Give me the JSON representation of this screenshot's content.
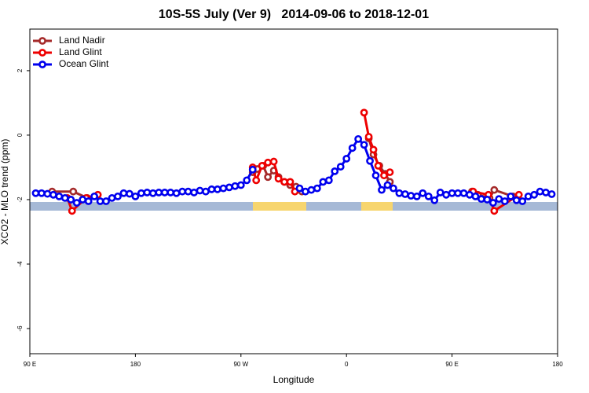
{
  "chart_data": {
    "type": "line",
    "title": "10S-5S July (Ver 9)   2014-09-06 to 2018-12-01",
    "x_label": "Longitude",
    "y_label": "XCO2 - MLO trend (ppm)",
    "xlim": [
      90,
      540
    ],
    "xticks": [
      {
        "value": 90,
        "label": "90 E"
      },
      {
        "value": 180,
        "label": "180"
      },
      {
        "value": 270,
        "label": "90 W"
      },
      {
        "value": 360,
        "label": "0"
      },
      {
        "value": 450,
        "label": "90 E"
      },
      {
        "value": 540,
        "label": "180"
      }
    ],
    "ylim": [
      -6.78,
      3.29
    ],
    "yticks": [
      -6,
      -4,
      -2,
      0,
      2
    ],
    "legend": "top-left",
    "series": [
      {
        "name": "Land Nadir",
        "color": "#a52a2a",
        "x": [
          109,
          127,
          139,
          200,
          280,
          284,
          289,
          293,
          298,
          302,
          307,
          312,
          317,
          322,
          350,
          379,
          383,
          388,
          393,
          397,
          430,
          467,
          472,
          482,
          486,
          502
        ],
        "values": [
          -1.75,
          -1.75,
          -1.95,
          null,
          -1.15,
          -1.05,
          -0.95,
          -1.3,
          -1.1,
          -1.3,
          -1.45,
          -1.55,
          -1.6,
          -1.75,
          null,
          -0.1,
          -0.6,
          -0.95,
          -1.2,
          -1.45,
          null,
          -1.75,
          -1.85,
          -1.95,
          -1.7,
          -1.9
        ]
      },
      {
        "name": "Land Glint",
        "color": "#ee0000",
        "x": [
          122,
          126,
          138,
          148,
          200,
          280,
          283,
          288,
          293,
          298,
          302,
          307,
          312,
          316,
          350,
          375,
          379,
          383,
          387,
          392,
          397,
          430,
          468,
          481,
          486,
          507
        ],
        "values": [
          -1.95,
          -2.35,
          -1.95,
          -1.85,
          null,
          -1.0,
          -1.4,
          -0.95,
          -0.85,
          -0.82,
          -1.35,
          -1.45,
          -1.45,
          -1.75,
          null,
          0.7,
          -0.05,
          -0.45,
          -0.95,
          -1.25,
          -1.15,
          null,
          -1.75,
          -1.85,
          -2.35,
          -1.85
        ]
      },
      {
        "name": "Ocean Glint",
        "color": "#0000ee",
        "x": [
          95,
          100,
          105,
          110,
          115,
          120,
          125,
          130,
          135,
          140,
          145,
          150,
          155,
          160,
          165,
          170,
          175,
          180,
          185,
          190,
          195,
          200,
          205,
          210,
          215,
          220,
          225,
          230,
          235,
          240,
          245,
          250,
          255,
          260,
          265,
          270,
          275,
          280,
          300,
          320,
          325,
          330,
          335,
          340,
          345,
          350,
          355,
          360,
          365,
          370,
          375,
          380,
          385,
          390,
          395,
          400,
          405,
          410,
          415,
          420,
          425,
          430,
          435,
          440,
          445,
          450,
          455,
          460,
          465,
          470,
          475,
          480,
          485,
          490,
          495,
          500,
          505,
          510,
          515,
          520,
          525,
          530,
          535
        ],
        "values": [
          -1.8,
          -1.8,
          -1.82,
          -1.85,
          -1.9,
          -1.95,
          -2.0,
          -2.1,
          -2.0,
          -2.05,
          -1.9,
          -2.05,
          -2.05,
          -1.95,
          -1.9,
          -1.8,
          -1.82,
          -1.9,
          -1.8,
          -1.78,
          -1.8,
          -1.78,
          -1.78,
          -1.78,
          -1.8,
          -1.75,
          -1.75,
          -1.78,
          -1.72,
          -1.75,
          -1.68,
          -1.68,
          -1.65,
          -1.62,
          -1.58,
          -1.55,
          -1.4,
          -1.07,
          null,
          -1.65,
          -1.75,
          -1.7,
          -1.65,
          -1.45,
          -1.4,
          -1.12,
          -0.98,
          -0.73,
          -0.4,
          -0.12,
          -0.3,
          -0.8,
          -1.25,
          -1.7,
          -1.55,
          -1.65,
          -1.8,
          -1.83,
          -1.88,
          -1.9,
          -1.8,
          -1.9,
          -2.02,
          -1.78,
          -1.85,
          -1.8,
          -1.8,
          -1.8,
          -1.85,
          -1.9,
          -1.98,
          -2.0,
          -2.1,
          -1.98,
          -2.05,
          -1.9,
          -2.02,
          -2.05,
          -1.9,
          -1.85,
          -1.75,
          -1.78,
          -1.83
        ]
      }
    ]
  }
}
